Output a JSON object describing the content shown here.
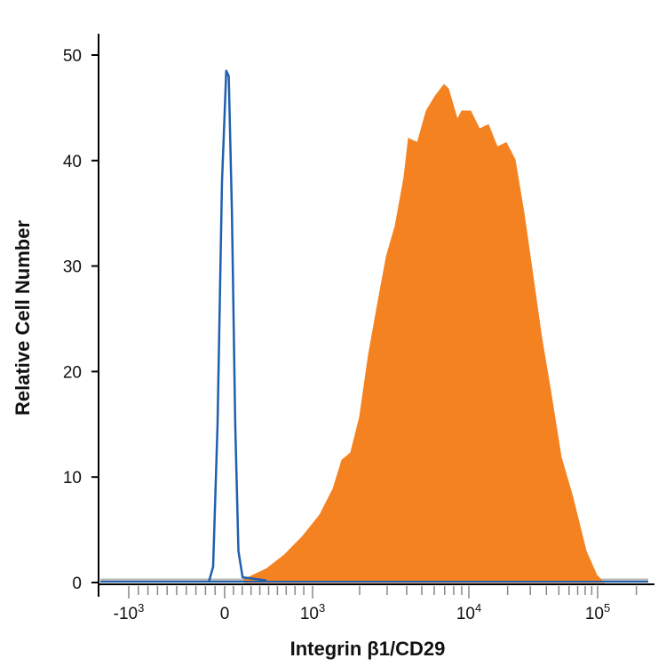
{
  "chart_data": {
    "type": "area",
    "title": "",
    "xlabel": "Integrin β1/CD29",
    "ylabel": "Relative Cell Number",
    "x_scale": "biexponential",
    "ylim": [
      0,
      50
    ],
    "grid": false,
    "y_ticks": [
      0,
      10,
      20,
      30,
      40,
      50
    ],
    "x_ticks": [
      {
        "value": -1000,
        "label": "-10",
        "sup": "3"
      },
      {
        "value": 0,
        "label": "0",
        "sup": ""
      },
      {
        "value": 1000,
        "label": "10",
        "sup": "3"
      },
      {
        "value": 10000,
        "label": "10",
        "sup": "4"
      },
      {
        "value": 100000,
        "label": "10",
        "sup": "5"
      }
    ],
    "series": [
      {
        "style": "filled",
        "color": "#f58220",
        "x": [
          222,
          475,
          677,
          879,
          1110,
          1352,
          1540,
          1754,
          2000,
          2280,
          2600,
          2965,
          3375,
          3845,
          4110,
          4680,
          5335,
          6080,
          6930,
          7400,
          8440,
          9010,
          10320,
          12100,
          14190,
          16630,
          19500,
          22850,
          26800,
          31400,
          36800,
          43100,
          52100,
          64100,
          81300,
          98400,
          111700
        ],
        "y": [
          0.3,
          1.3,
          2.6,
          4.3,
          6.4,
          8.9,
          11.6,
          12.3,
          15.7,
          21.6,
          26.3,
          30.9,
          33.8,
          38.4,
          42.1,
          41.7,
          44.7,
          46.1,
          47.2,
          46.8,
          43.9,
          44.7,
          44.7,
          43.0,
          43.4,
          41.3,
          41.7,
          40.1,
          35.0,
          29.1,
          23.2,
          18.2,
          11.9,
          8.1,
          3.0,
          0.7,
          0
        ]
      },
      {
        "style": "outline",
        "color": "#1f5fae",
        "x": [
          -167,
          -120,
          -74,
          -28,
          18,
          46,
          83,
          120,
          157,
          204,
          475
        ],
        "y": [
          0,
          1.5,
          15,
          38,
          48.5,
          48,
          35,
          15,
          3,
          0.5,
          0.2
        ]
      }
    ]
  }
}
